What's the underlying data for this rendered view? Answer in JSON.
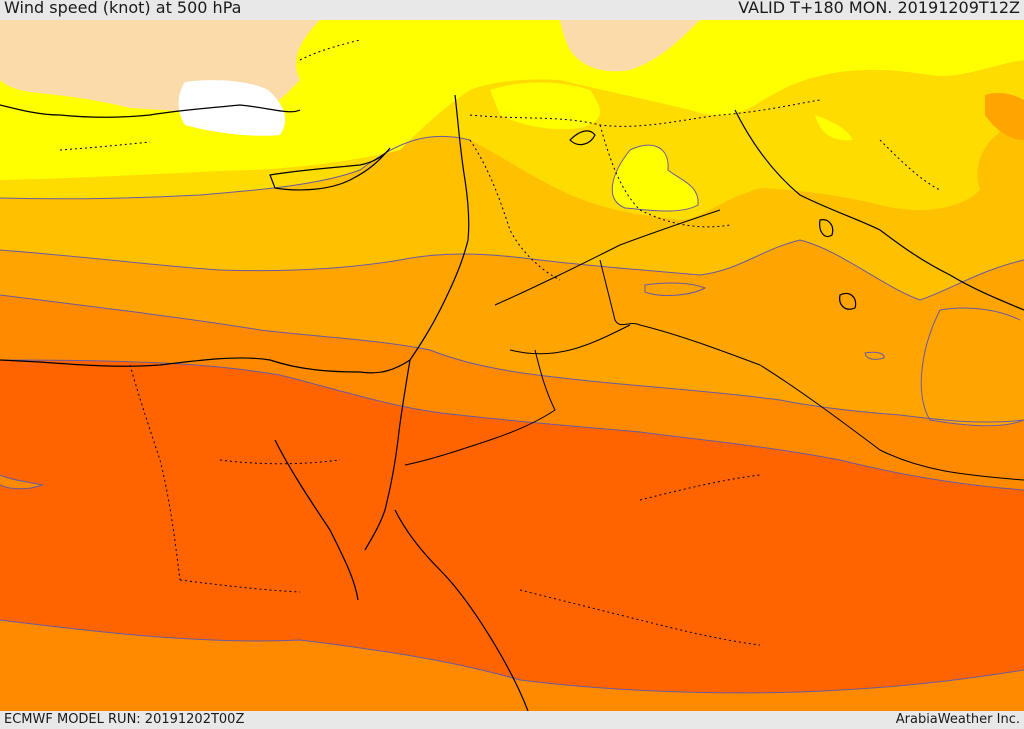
{
  "header": {
    "title": "Wind speed (knot) at 500 hPa",
    "valid": "VALID T+180 MON. 20191209T12Z"
  },
  "footer": {
    "model_run": "ECMWF MODEL RUN: 20191202T00Z",
    "credit": "ArabiaWeather Inc."
  },
  "map": {
    "field": "wind speed",
    "level": "500 hPa",
    "colors": {
      "white": "#ffffff",
      "tan": "#fcdbaa",
      "yellow": "#ffff00",
      "gold": "#ffdc00",
      "amber": "#ffc000",
      "orange": "#ffa400",
      "dark_orange": "#ff8a00",
      "red_orange": "#ff6400",
      "contour": "#6a5aa0",
      "coast": "#000000"
    },
    "bands": [
      "white",
      "tan",
      "yellow",
      "gold",
      "amber",
      "orange",
      "dark_orange",
      "red_orange"
    ]
  }
}
